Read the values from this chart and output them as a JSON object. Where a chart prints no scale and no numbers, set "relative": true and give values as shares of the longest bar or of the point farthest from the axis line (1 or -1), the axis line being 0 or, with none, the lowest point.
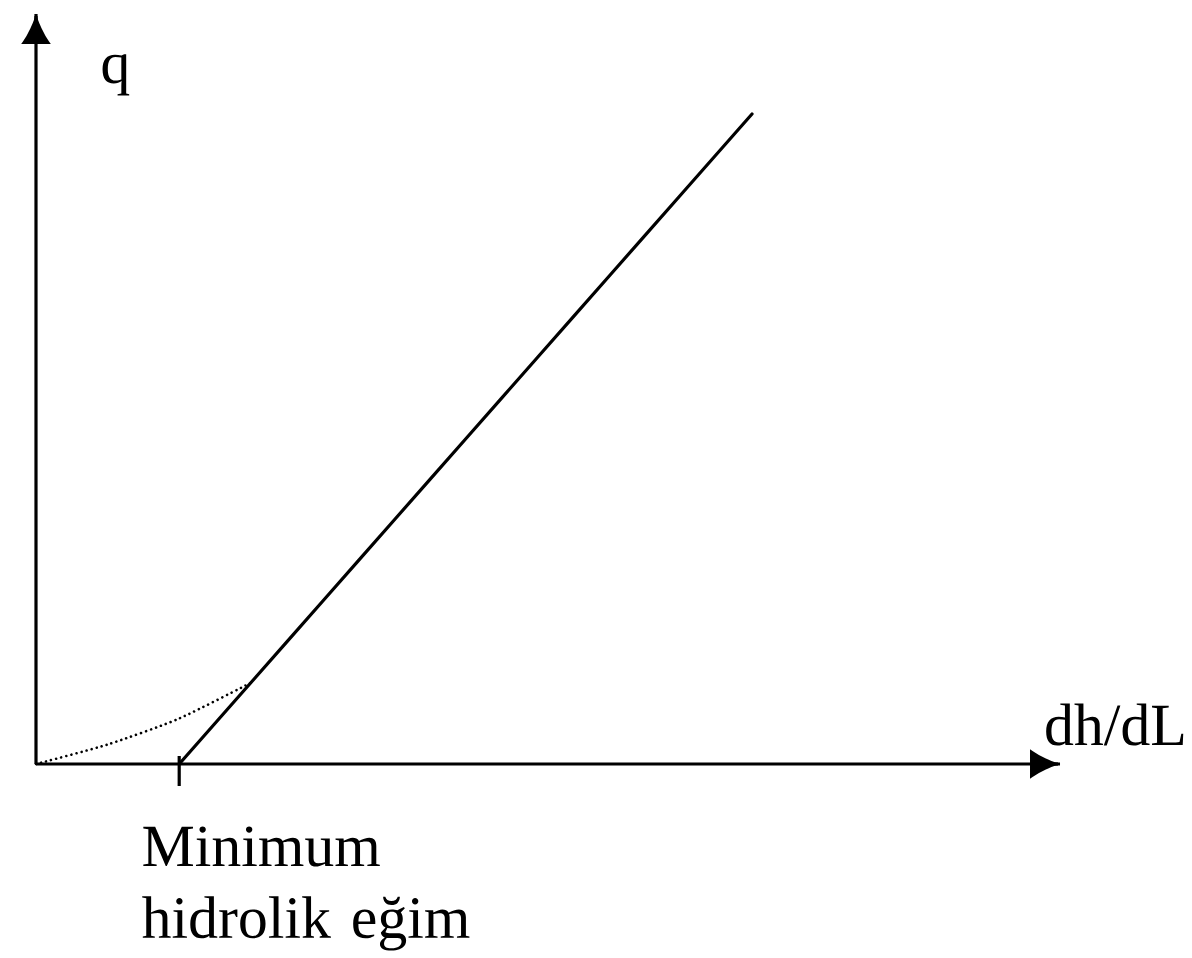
{
  "chart_data": {
    "type": "line",
    "xlabel": "dh/dL",
    "ylabel": "q",
    "relative": true,
    "annotations": [
      "Minimum hidrolik eğim"
    ],
    "categories": [
      null,
      null,
      null,
      null,
      null,
      null,
      null,
      null,
      null,
      null,
      null
    ],
    "series": [
      {
        "color": "#000000",
        "line_style": "solid",
        "values": [
          null,
          null,
          0,
          0.125,
          0.25,
          0.375,
          0.5,
          0.625,
          0.75,
          0.875,
          1
        ]
      },
      {
        "color": "#000000",
        "line_style": "dotted",
        "values": [
          0,
          0.03,
          0.07,
          0.125,
          null,
          null,
          null,
          null,
          null,
          null,
          null
        ]
      }
    ]
  }
}
